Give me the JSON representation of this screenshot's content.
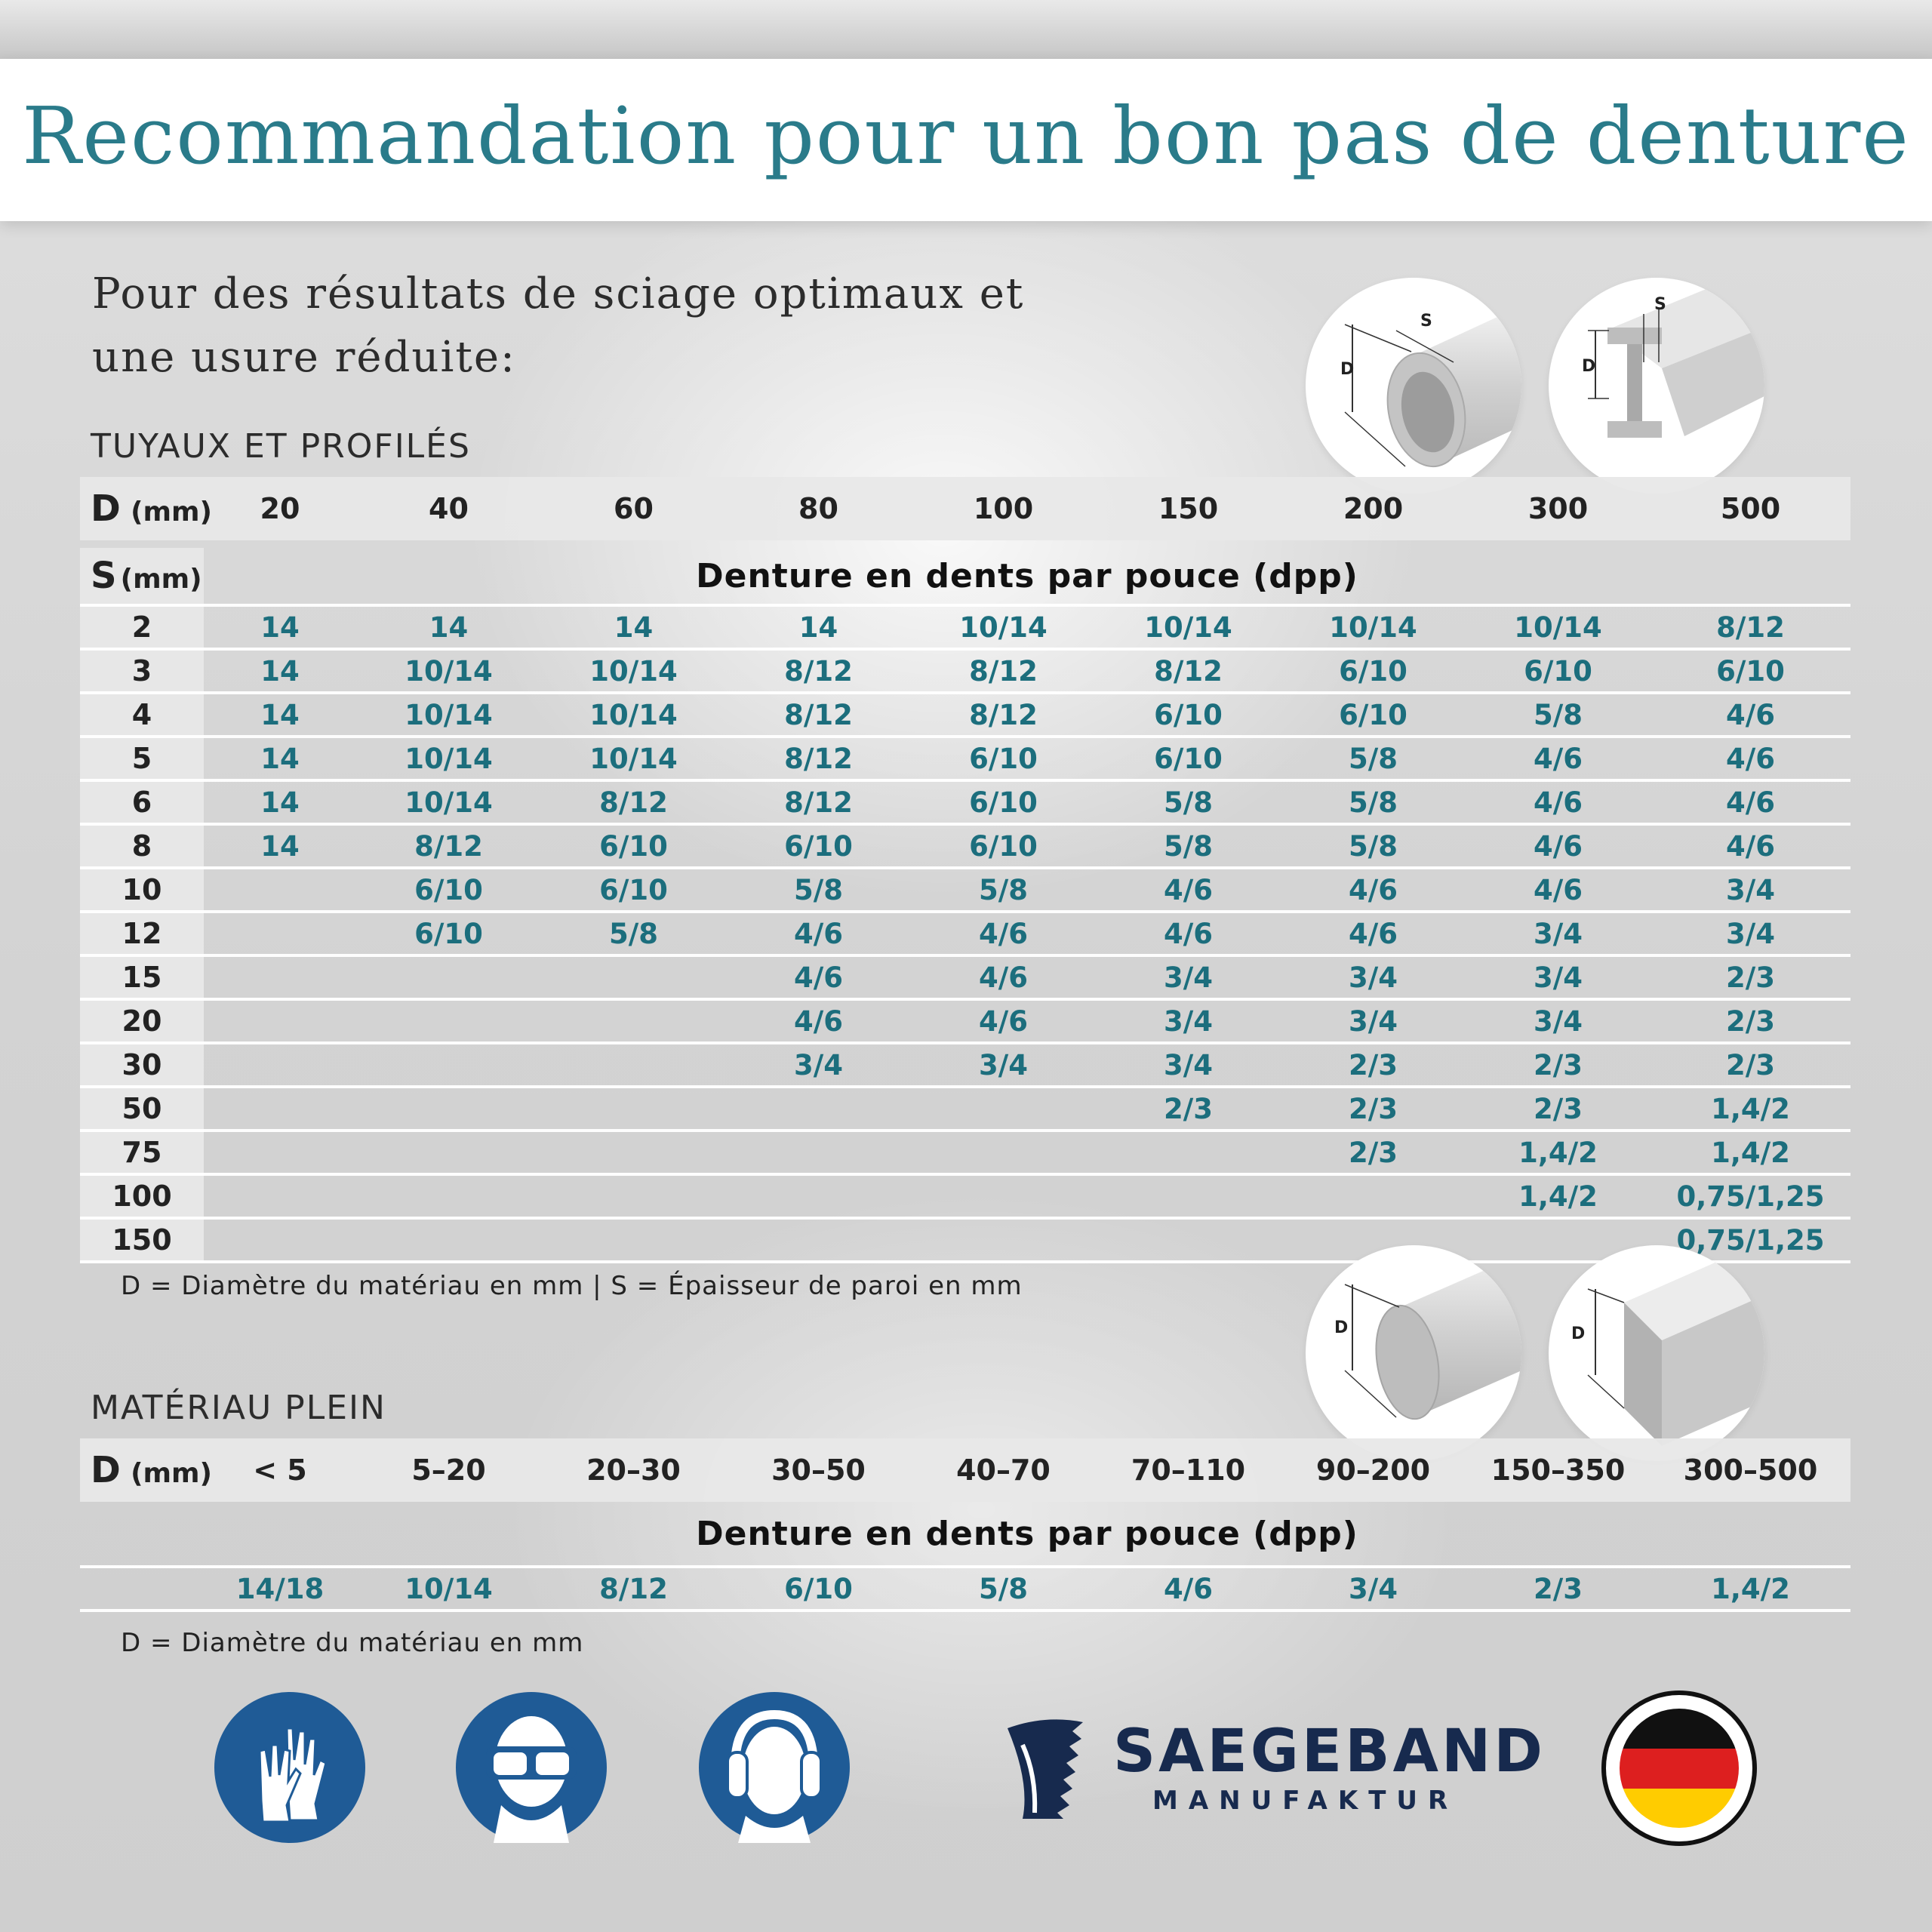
{
  "title": "Recommandation pour un bon pas de denture",
  "intro": {
    "line1": "Pour des résultats de sciage optimaux et",
    "line2": "une usure réduite:"
  },
  "pipes": {
    "section_title": "TUYAUX ET PROFILÉS",
    "d_symbol": "D",
    "s_symbol": "S",
    "unit": "(mm)",
    "header": [
      "20",
      "40",
      "60",
      "80",
      "100",
      "150",
      "200",
      "300",
      "500"
    ],
    "denture_label": "Denture en dents par pouce (dpp)",
    "rows": [
      {
        "s": "2",
        "values": [
          "14",
          "14",
          "14",
          "14",
          "10/14",
          "10/14",
          "10/14",
          "10/14",
          "8/12"
        ]
      },
      {
        "s": "3",
        "values": [
          "14",
          "10/14",
          "10/14",
          "8/12",
          "8/12",
          "8/12",
          "6/10",
          "6/10",
          "6/10"
        ]
      },
      {
        "s": "4",
        "values": [
          "14",
          "10/14",
          "10/14",
          "8/12",
          "8/12",
          "6/10",
          "6/10",
          "5/8",
          "4/6"
        ]
      },
      {
        "s": "5",
        "values": [
          "14",
          "10/14",
          "10/14",
          "8/12",
          "6/10",
          "6/10",
          "5/8",
          "4/6",
          "4/6"
        ]
      },
      {
        "s": "6",
        "values": [
          "14",
          "10/14",
          "8/12",
          "8/12",
          "6/10",
          "5/8",
          "5/8",
          "4/6",
          "4/6"
        ]
      },
      {
        "s": "8",
        "values": [
          "14",
          "8/12",
          "6/10",
          "6/10",
          "6/10",
          "5/8",
          "5/8",
          "4/6",
          "4/6"
        ]
      },
      {
        "s": "10",
        "values": [
          "",
          "6/10",
          "6/10",
          "5/8",
          "5/8",
          "4/6",
          "4/6",
          "4/6",
          "3/4"
        ]
      },
      {
        "s": "12",
        "values": [
          "",
          "6/10",
          "5/8",
          "4/6",
          "4/6",
          "4/6",
          "4/6",
          "3/4",
          "3/4"
        ]
      },
      {
        "s": "15",
        "values": [
          "",
          "",
          "",
          "4/6",
          "4/6",
          "3/4",
          "3/4",
          "3/4",
          "2/3"
        ]
      },
      {
        "s": "20",
        "values": [
          "",
          "",
          "",
          "4/6",
          "4/6",
          "3/4",
          "3/4",
          "3/4",
          "2/3"
        ]
      },
      {
        "s": "30",
        "values": [
          "",
          "",
          "",
          "3/4",
          "3/4",
          "3/4",
          "2/3",
          "2/3",
          "2/3"
        ]
      },
      {
        "s": "50",
        "values": [
          "",
          "",
          "",
          "",
          "",
          "2/3",
          "2/3",
          "2/3",
          "1,4/2"
        ]
      },
      {
        "s": "75",
        "values": [
          "",
          "",
          "",
          "",
          "",
          "",
          "2/3",
          "1,4/2",
          "1,4/2"
        ]
      },
      {
        "s": "100",
        "values": [
          "",
          "",
          "",
          "",
          "",
          "",
          "",
          "1,4/2",
          "0,75/1,25"
        ]
      },
      {
        "s": "150",
        "values": [
          "",
          "",
          "",
          "",
          "",
          "",
          "",
          "",
          "0,75/1,25"
        ]
      }
    ],
    "note": "D = Diamètre du matériau en mm | S = Épaisseur de paroi en mm"
  },
  "solid": {
    "section_title": "MATÉRIAU PLEIN",
    "d_symbol": "D",
    "unit": "(mm)",
    "header": [
      "< 5",
      "5–20",
      "20–30",
      "30–50",
      "40–70",
      "70–110",
      "90–200",
      "150–350",
      "300–500"
    ],
    "denture_label": "Denture en dents par pouce (dpp)",
    "values": [
      "14/18",
      "10/14",
      "8/12",
      "6/10",
      "5/8",
      "4/6",
      "3/4",
      "2/3",
      "1,4/2"
    ],
    "note": "D = Diamètre du matériau en mm"
  },
  "diagram_labels": {
    "d": "D",
    "s": "S"
  },
  "brand": {
    "name": "SAEGEBAND",
    "sub": "MANUFAKTUR"
  },
  "icons": [
    "gloves-icon",
    "goggles-icon",
    "ear-protection-icon",
    "saw-blade-logo-icon",
    "german-flag-icon"
  ],
  "colors": {
    "title": "#2a7b8a",
    "values": "#1c6e7d",
    "safety_blue": "#1f5b96",
    "brand": "#172a4e"
  }
}
